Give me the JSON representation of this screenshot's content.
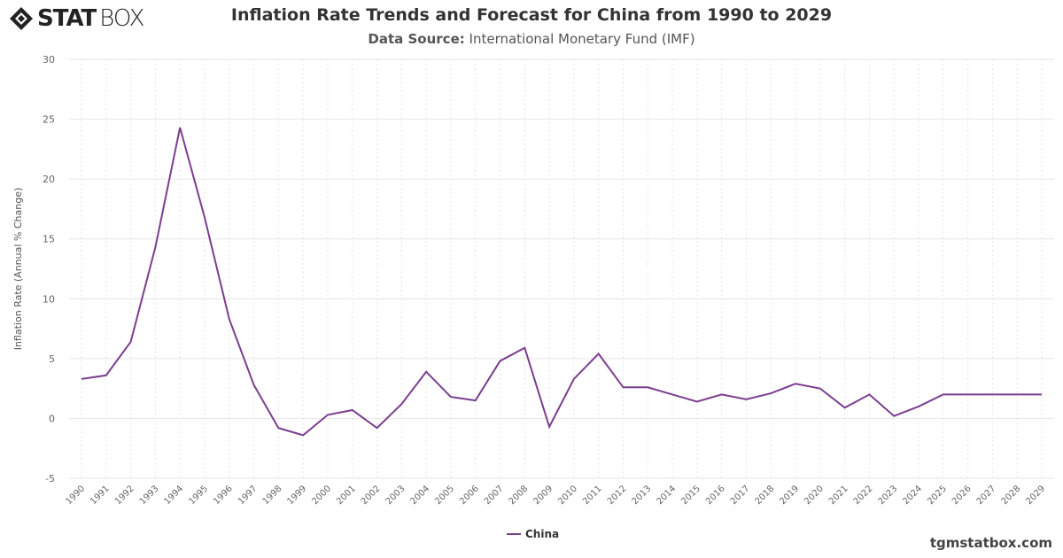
{
  "logo": {
    "bold": "STAT",
    "light": "BOX"
  },
  "footer": {
    "site": "tgmstatbox.com"
  },
  "chart_data": {
    "type": "line",
    "title": "Inflation Rate Trends and Forecast for China from 1990 to 2029",
    "subtitle_label": "Data Source:",
    "subtitle_value": "International Monetary Fund (IMF)",
    "xlabel": "",
    "ylabel": "Inflation Rate (Annual % Change)",
    "ylim": [
      -5,
      30
    ],
    "yticks": [
      -5,
      0,
      5,
      10,
      15,
      20,
      25,
      30
    ],
    "grid": true,
    "legend_position": "bottom",
    "x": [
      "1990",
      "1991",
      "1992",
      "1993",
      "1994",
      "1995",
      "1996",
      "1997",
      "1998",
      "1999",
      "2000",
      "2001",
      "2002",
      "2003",
      "2004",
      "2005",
      "2006",
      "2007",
      "2008",
      "2009",
      "2010",
      "2011",
      "2012",
      "2013",
      "2014",
      "2015",
      "2016",
      "2017",
      "2018",
      "2019",
      "2020",
      "2021",
      "2022",
      "2023",
      "2024",
      "2025",
      "2026",
      "2027",
      "2028",
      "2029"
    ],
    "series": [
      {
        "name": "China",
        "color": "#7a3e8e",
        "values": [
          3.3,
          3.6,
          6.4,
          14.3,
          24.3,
          16.8,
          8.3,
          2.8,
          -0.8,
          -1.4,
          0.3,
          0.7,
          -0.8,
          1.2,
          3.9,
          1.8,
          1.5,
          4.8,
          5.9,
          -0.7,
          3.3,
          5.4,
          2.6,
          2.6,
          2.0,
          1.4,
          2.0,
          1.6,
          2.1,
          2.9,
          2.5,
          0.9,
          2.0,
          0.2,
          1.0,
          2.0,
          2.0,
          2.0,
          2.0,
          2.0
        ]
      }
    ]
  }
}
